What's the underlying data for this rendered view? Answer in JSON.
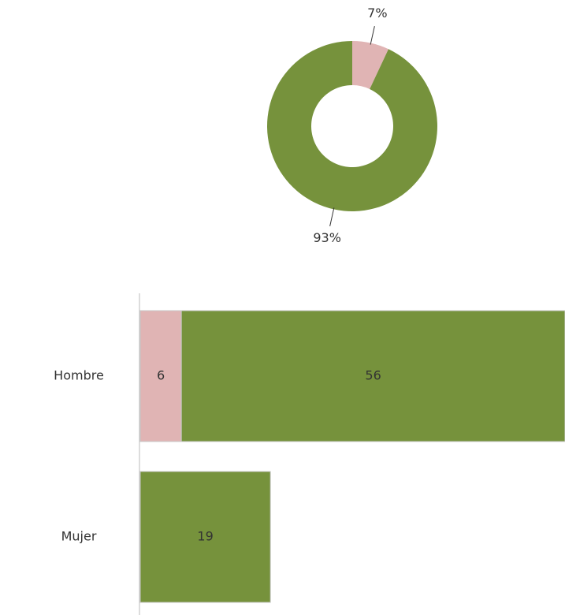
{
  "chart_data": [
    {
      "type": "pie",
      "values": [
        7,
        93
      ],
      "value_labels": [
        "7%",
        "93%"
      ],
      "colors": [
        "#e0b4b4",
        "#76923c"
      ]
    },
    {
      "type": "bar",
      "orientation": "horizontal",
      "stacked": true,
      "categories": [
        "Hombre",
        "Mujer"
      ],
      "series": [
        {
          "color": "#e0b4b4",
          "values": [
            6,
            null
          ]
        },
        {
          "color": "#76923c",
          "values": [
            56,
            19
          ]
        }
      ]
    }
  ]
}
